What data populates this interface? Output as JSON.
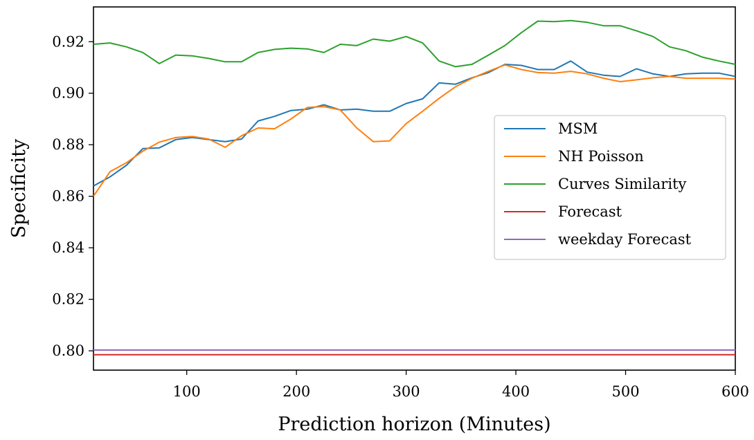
{
  "chart_data": {
    "type": "line",
    "xlabel": "Prediction horizon (Minutes)",
    "ylabel": "Specificity",
    "xlim": [
      15,
      600
    ],
    "ylim": [
      0.7925,
      0.9335
    ],
    "xticks": [
      100,
      200,
      300,
      400,
      500,
      600
    ],
    "yticks": [
      0.8,
      0.82,
      0.84,
      0.86,
      0.88,
      0.9,
      0.92
    ],
    "xtick_labels": [
      "100",
      "200",
      "300",
      "400",
      "500",
      "600"
    ],
    "ytick_labels": [
      "0.80",
      "0.82",
      "0.84",
      "0.86",
      "0.88",
      "0.90",
      "0.92"
    ],
    "grid": false,
    "legend_position": "center-right",
    "x": [
      15,
      30,
      45,
      60,
      75,
      90,
      105,
      120,
      135,
      150,
      165,
      180,
      195,
      210,
      225,
      240,
      255,
      270,
      285,
      300,
      315,
      330,
      345,
      360,
      375,
      390,
      405,
      420,
      435,
      450,
      465,
      480,
      495,
      510,
      525,
      540,
      555,
      570,
      585,
      600
    ],
    "series": [
      {
        "name": "MSM",
        "color": "#1f77b4",
        "values": [
          0.864,
          0.8675,
          0.872,
          0.8785,
          0.8788,
          0.882,
          0.8828,
          0.882,
          0.8812,
          0.8822,
          0.8892,
          0.891,
          0.8933,
          0.8938,
          0.8955,
          0.8935,
          0.8938,
          0.893,
          0.893,
          0.896,
          0.8978,
          0.904,
          0.9035,
          0.906,
          0.908,
          0.9112,
          0.9108,
          0.9092,
          0.9092,
          0.9125,
          0.9082,
          0.907,
          0.9065,
          0.9095,
          0.9075,
          0.9065,
          0.9075,
          0.9078,
          0.9078,
          0.9065
        ]
      },
      {
        "name": "NH Poisson",
        "color": "#ff7f0e",
        "values": [
          0.86,
          0.8695,
          0.873,
          0.8775,
          0.881,
          0.8828,
          0.8832,
          0.8822,
          0.879,
          0.8835,
          0.8865,
          0.8862,
          0.89,
          0.8945,
          0.8948,
          0.8935,
          0.8865,
          0.8812,
          0.8815,
          0.8882,
          0.893,
          0.898,
          0.9025,
          0.9058,
          0.9085,
          0.911,
          0.9092,
          0.908,
          0.9078,
          0.9085,
          0.9075,
          0.9058,
          0.9045,
          0.9052,
          0.906,
          0.9065,
          0.9058,
          0.9058,
          0.9058,
          0.9055
        ]
      },
      {
        "name": "Curves Similarity",
        "color": "#2ca02c",
        "values": [
          0.919,
          0.9195,
          0.918,
          0.9158,
          0.9115,
          0.9148,
          0.9145,
          0.9135,
          0.9122,
          0.9122,
          0.9158,
          0.917,
          0.9175,
          0.9172,
          0.9158,
          0.919,
          0.9185,
          0.921,
          0.9202,
          0.922,
          0.9195,
          0.9125,
          0.9103,
          0.9112,
          0.9148,
          0.9185,
          0.9235,
          0.928,
          0.9278,
          0.9282,
          0.9275,
          0.9262,
          0.9262,
          0.9242,
          0.922,
          0.918,
          0.9165,
          0.914,
          0.9125,
          0.9112
        ]
      },
      {
        "name": "Forecast",
        "color": "#d62728",
        "values": [
          0.7985,
          0.7985,
          0.7985,
          0.7985,
          0.7985,
          0.7985,
          0.7985,
          0.7985,
          0.7985,
          0.7985,
          0.7985,
          0.7985,
          0.7985,
          0.7985,
          0.7985,
          0.7985,
          0.7985,
          0.7985,
          0.7985,
          0.7985,
          0.7985,
          0.7985,
          0.7985,
          0.7985,
          0.7985,
          0.7985,
          0.7985,
          0.7985,
          0.7985,
          0.7985,
          0.7985,
          0.7985,
          0.7985,
          0.7985,
          0.7985,
          0.7985,
          0.7985,
          0.7985,
          0.7985,
          0.7985
        ]
      },
      {
        "name": "weekday Forecast",
        "color": "#9467bd",
        "values": [
          0.8003,
          0.8003,
          0.8003,
          0.8003,
          0.8003,
          0.8003,
          0.8003,
          0.8003,
          0.8003,
          0.8003,
          0.8003,
          0.8003,
          0.8003,
          0.8003,
          0.8003,
          0.8003,
          0.8003,
          0.8003,
          0.8003,
          0.8003,
          0.8003,
          0.8003,
          0.8003,
          0.8003,
          0.8003,
          0.8003,
          0.8003,
          0.8003,
          0.8003,
          0.8003,
          0.8003,
          0.8003,
          0.8003,
          0.8003,
          0.8003,
          0.8003,
          0.8003,
          0.8003,
          0.8003,
          0.8003
        ]
      }
    ]
  }
}
